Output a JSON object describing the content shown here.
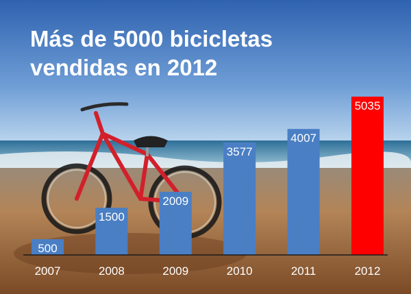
{
  "title_lines": [
    "Más de 5000 bicicletas",
    "vendidas en 2012"
  ],
  "colors": {
    "bar": "#4a7fc4",
    "highlight_bar": "#ff0000",
    "label_text": "#ffffff",
    "axis": "#1a1a1a"
  },
  "chart_data": {
    "type": "bar",
    "title": "Más de 5000 bicicletas vendidas en 2012",
    "categories": [
      "2007",
      "2008",
      "2009",
      "2010",
      "2011",
      "2012"
    ],
    "values": [
      500,
      1500,
      2009,
      3577,
      4007,
      5035
    ],
    "data_labels": [
      "500",
      "1500",
      "2009",
      "3577",
      "4007",
      "5035"
    ],
    "highlight_category": "2012",
    "xlabel": "",
    "ylabel": "",
    "ylim": [
      0,
      5700
    ],
    "grid": false,
    "legend": "none"
  }
}
